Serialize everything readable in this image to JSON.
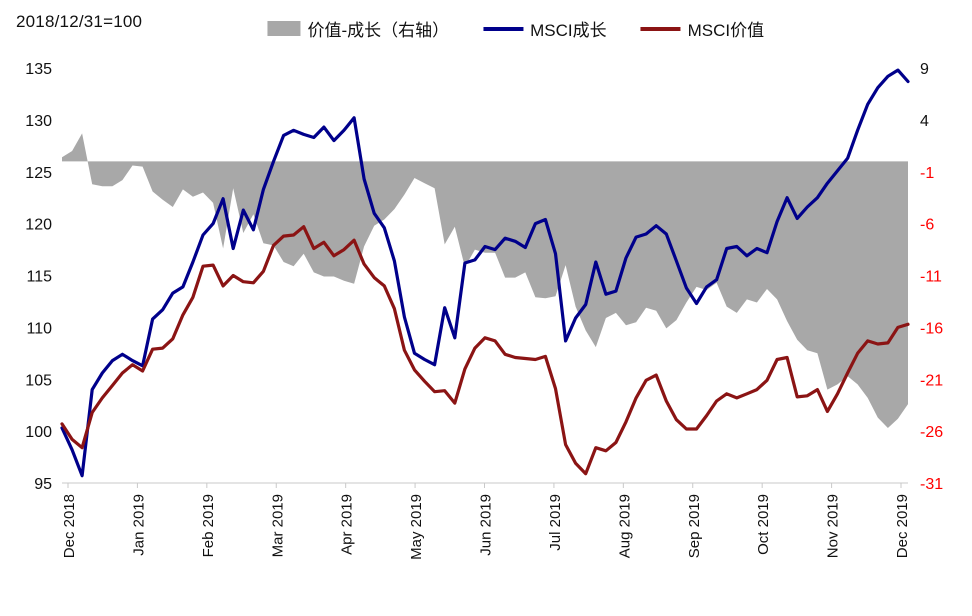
{
  "title_note": "2018/12/31=100",
  "legend": {
    "items": [
      {
        "label": "价值-成长（右轴）",
        "swatch": "area",
        "color": "#a8a8a8"
      },
      {
        "label": "MSCI成长",
        "swatch": "line",
        "color": "#00008b"
      },
      {
        "label": "MSCI价值",
        "swatch": "line",
        "color": "#8b1414"
      }
    ]
  },
  "chart_data": {
    "type": "line+area",
    "title": "2018/12/31=100",
    "grid": false,
    "legend_position": "top",
    "x_tick_labels": [
      "Dec 2018",
      "Jan 2019",
      "Feb 2019",
      "Mar 2019",
      "Apr 2019",
      "May 2019",
      "Jun 2019",
      "Jul 2019",
      "Aug 2019",
      "Sep 2019",
      "Oct 2019",
      "Nov 2019",
      "Dec 2019"
    ],
    "left_axis": {
      "range": [
        95,
        135
      ],
      "ticks": [
        135,
        130,
        125,
        120,
        115,
        110,
        105,
        100,
        95
      ],
      "label_color": "#111111"
    },
    "right_axis": {
      "range": [
        -31,
        9
      ],
      "ticks": [
        9,
        4,
        -1,
        -6,
        -11,
        -16,
        -21,
        -26,
        -31
      ],
      "positive_label_color": "#111111",
      "negative_label_color": "#ff0000"
    },
    "axis_line_color": "#c9c9c9",
    "series": [
      {
        "name": "价值-成长（右轴）",
        "type": "area",
        "axis": "right",
        "baseline": 0,
        "color": "#a8a8a8",
        "values": [
          0.4,
          1.0,
          2.7,
          -2.2,
          -2.4,
          -2.4,
          -1.8,
          -0.4,
          -0.5,
          -2.9,
          -3.7,
          -4.4,
          -2.7,
          -3.4,
          -3.0,
          -4.0,
          -8.4,
          -2.6,
          -6.9,
          -5.1,
          -7.9,
          -8.1,
          -9.7,
          -10.1,
          -8.9,
          -10.7,
          -11.1,
          -11.1,
          -11.5,
          -11.8,
          -8.2,
          -6.2,
          -5.6,
          -4.6,
          -3.2,
          -1.6,
          -2.1,
          -2.6,
          -8.0,
          -6.3,
          -10.2,
          -8.5,
          -8.8,
          -8.8,
          -11.2,
          -11.2,
          -10.7,
          -13.1,
          -13.2,
          -13.0,
          -10.0,
          -14.0,
          -16.3,
          -17.9,
          -15.1,
          -14.6,
          -15.8,
          -15.5,
          -14.1,
          -14.4,
          -16.1,
          -15.3,
          -13.6,
          -12.1,
          -12.4,
          -11.7,
          -14.0,
          -14.6,
          -13.3,
          -13.6,
          -12.3,
          -13.3,
          -15.4,
          -17.2,
          -18.2,
          -18.5,
          -22.0,
          -21.5,
          -20.7,
          -21.5,
          -22.8,
          -24.7,
          -25.7,
          -24.8,
          -23.4
        ]
      },
      {
        "name": "MSCI成长",
        "type": "line",
        "axis": "left",
        "color": "#00008b",
        "values": [
          100.3,
          98.2,
          95.7,
          104.0,
          105.6,
          106.8,
          107.4,
          106.8,
          106.3,
          110.8,
          111.7,
          113.3,
          113.9,
          116.3,
          118.9,
          120.0,
          122.4,
          117.6,
          121.3,
          119.4,
          123.3,
          126.0,
          128.5,
          129.0,
          128.6,
          128.3,
          129.3,
          128.0,
          129.0,
          130.2,
          124.3,
          121.0,
          119.6,
          116.4,
          111.0,
          107.5,
          106.9,
          106.4,
          111.9,
          109.0,
          116.2,
          116.5,
          117.8,
          117.5,
          118.6,
          118.3,
          117.7,
          120.0,
          120.4,
          117.1,
          108.7,
          110.9,
          112.2,
          116.3,
          113.2,
          113.5,
          116.7,
          118.7,
          119.0,
          119.8,
          119.0,
          116.4,
          113.8,
          112.3,
          113.9,
          114.6,
          117.6,
          117.8,
          116.9,
          117.6,
          117.2,
          120.2,
          122.5,
          120.5,
          121.6,
          122.5,
          123.9,
          125.1,
          126.3,
          129.0,
          131.5,
          133.1,
          134.2,
          134.8,
          133.7
        ]
      },
      {
        "name": "MSCI价值",
        "type": "line",
        "axis": "left",
        "color": "#8b1414",
        "values": [
          100.7,
          99.2,
          98.4,
          101.8,
          103.2,
          104.4,
          105.6,
          106.4,
          105.8,
          107.9,
          108.0,
          108.9,
          111.2,
          112.9,
          115.9,
          116.0,
          114.0,
          115.0,
          114.4,
          114.3,
          115.4,
          117.9,
          118.8,
          118.9,
          119.7,
          117.6,
          118.2,
          116.9,
          117.5,
          118.4,
          116.1,
          114.8,
          114.0,
          111.8,
          107.8,
          105.9,
          104.8,
          103.8,
          103.9,
          102.7,
          106.0,
          108.0,
          109.0,
          108.7,
          107.4,
          107.1,
          107.0,
          106.9,
          107.2,
          104.1,
          98.7,
          96.9,
          95.9,
          98.4,
          98.1,
          98.9,
          100.9,
          103.2,
          104.9,
          105.4,
          102.9,
          101.1,
          100.2,
          100.2,
          101.5,
          102.9,
          103.6,
          103.2,
          103.6,
          104.0,
          104.9,
          106.9,
          107.1,
          103.3,
          103.4,
          104.0,
          101.9,
          103.6,
          105.6,
          107.5,
          108.7,
          108.4,
          108.5,
          110.0,
          110.3
        ]
      }
    ]
  }
}
